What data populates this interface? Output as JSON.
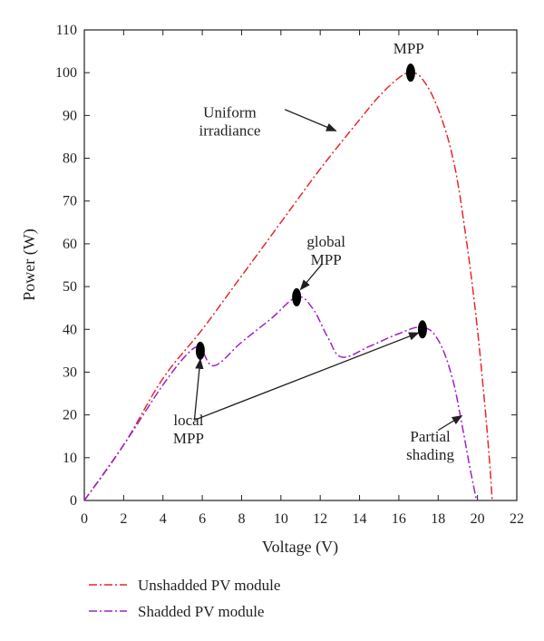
{
  "chart_data": {
    "type": "line",
    "title": "",
    "xlabel": "Voltage (V)",
    "ylabel": "Power (W)",
    "xlim": [
      0,
      22
    ],
    "ylim": [
      0,
      110
    ],
    "xticks": [
      0,
      2,
      4,
      6,
      8,
      10,
      12,
      14,
      16,
      18,
      20,
      22
    ],
    "yticks": [
      0,
      10,
      20,
      30,
      40,
      50,
      60,
      70,
      80,
      90,
      100,
      110
    ],
    "grid": false,
    "legend_placement": "bottom-left, below plot",
    "series": [
      {
        "name": "Unshadded PV module",
        "color": "#e8262b",
        "line_style": "dash-dot",
        "x": [
          0,
          2,
          4,
          6,
          8,
          10,
          12,
          14,
          15,
          16,
          16.6,
          17.2,
          18,
          18.8,
          19.4,
          19.9,
          20.3,
          20.6,
          20.75
        ],
        "y": [
          0,
          13,
          28.5,
          40,
          52.5,
          65,
          77.5,
          89,
          94.5,
          98.8,
          100,
          98.5,
          91.5,
          79,
          62,
          44,
          26,
          10,
          0
        ]
      },
      {
        "name": "Shadded PV module",
        "color": "#a020c8",
        "line_style": "dash-dot",
        "x": [
          0,
          2,
          4,
          5.3,
          5.9,
          6.6,
          8,
          9.5,
          10.8,
          11.6,
          12.4,
          13.1,
          14.5,
          16,
          17.2,
          18,
          18.7,
          19.2,
          19.6,
          19.95
        ],
        "y": [
          0,
          13,
          27,
          34.5,
          35.5,
          31.5,
          37,
          42.5,
          47.5,
          45,
          38,
          33.5,
          36,
          39,
          40.5,
          37.5,
          29,
          18,
          8,
          0
        ]
      }
    ],
    "markers": [
      {
        "x": 16.6,
        "y": 100
      },
      {
        "x": 10.8,
        "y": 47.5
      },
      {
        "x": 5.9,
        "y": 35
      },
      {
        "x": 17.2,
        "y": 40
      }
    ],
    "annotations": [
      {
        "id": "mpp",
        "lines": [
          "MPP"
        ],
        "text_x": 16.5,
        "text_y": 104.5
      },
      {
        "id": "uniform",
        "lines": [
          "Uniform",
          "irradiance"
        ],
        "text_x": 7.4,
        "text_y": 89.5,
        "arrow_from": [
          10.2,
          91.4
        ],
        "arrow_to": [
          12.8,
          86.4
        ]
      },
      {
        "id": "global",
        "lines": [
          "global",
          "MPP"
        ],
        "text_x": 12.3,
        "text_y": 59.3,
        "arrow_from": [
          12.1,
          55.3
        ],
        "arrow_to": [
          11.0,
          49.3
        ]
      },
      {
        "id": "local",
        "lines": [
          "local",
          "MPP"
        ],
        "text_x": 5.3,
        "text_y": 17.6,
        "arrow_from": [
          5.6,
          18.8
        ],
        "arrow_to": [
          5.9,
          33.0
        ],
        "arrow_to_2": [
          17.0,
          39.2
        ]
      },
      {
        "id": "partial",
        "lines": [
          "Partial",
          "shading"
        ],
        "text_x": 17.6,
        "text_y": 13.8,
        "arrow_from": [
          18.0,
          16.4
        ],
        "arrow_to": [
          19.2,
          19.8
        ]
      }
    ]
  }
}
